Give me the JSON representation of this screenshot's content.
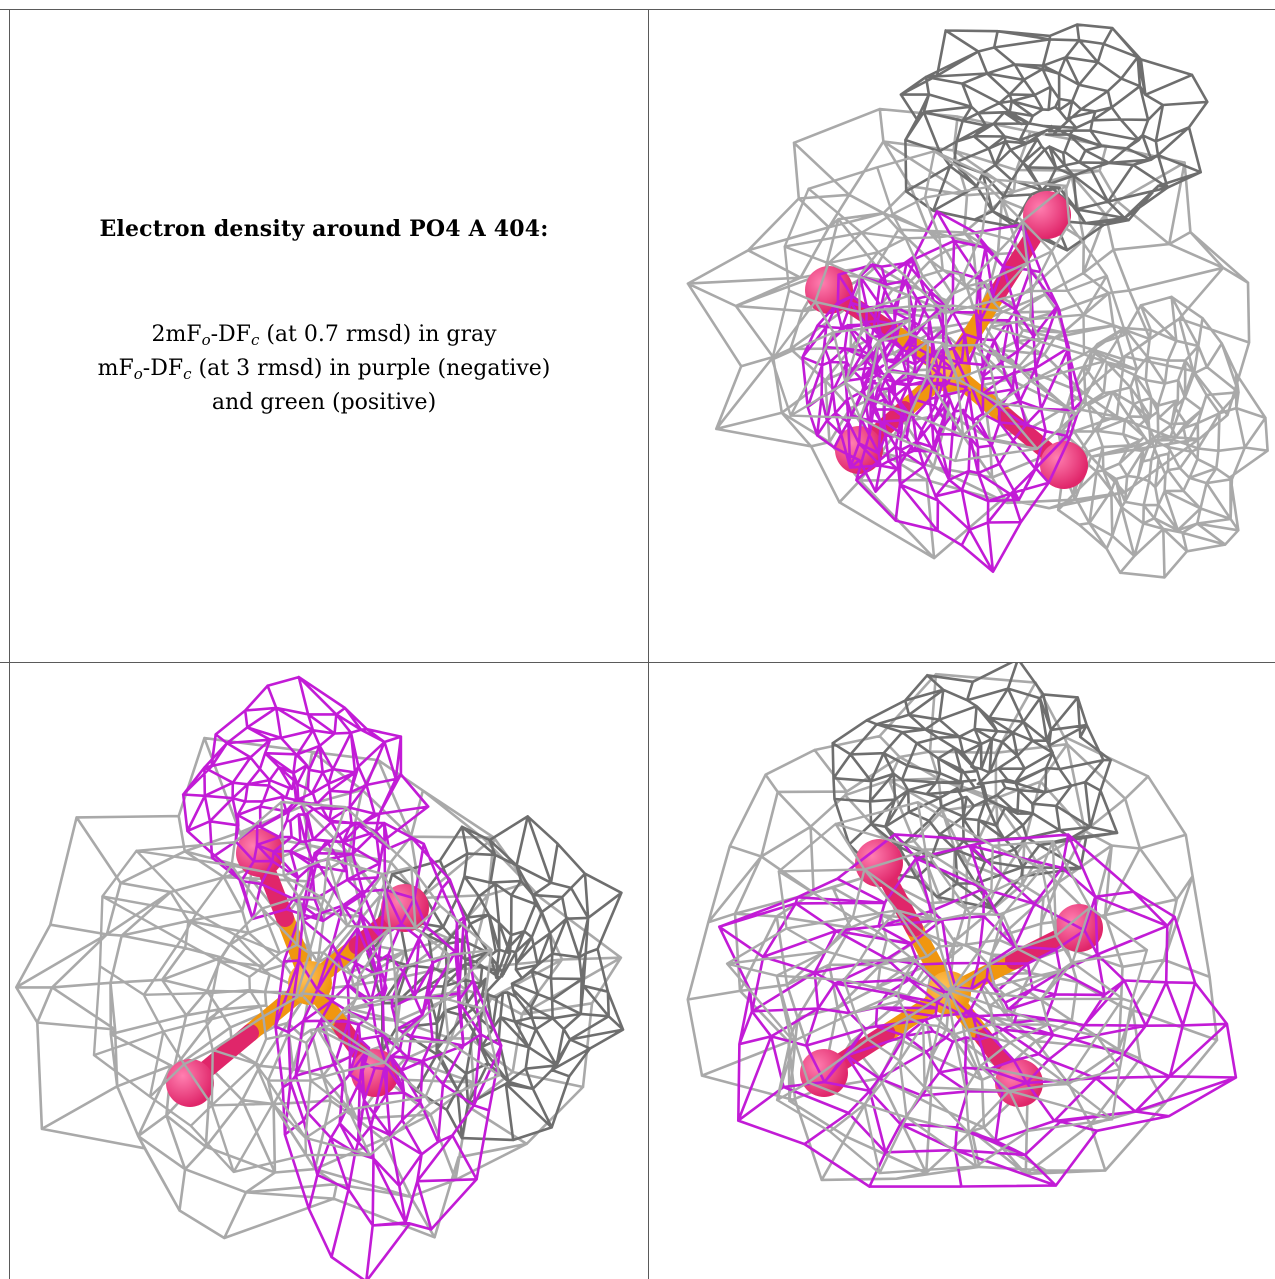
{
  "caption": {
    "title": "Electron density around PO4 A 404:",
    "line1": {
      "pre": "2mF",
      "sub1": "o",
      "mid": "-DF",
      "sub2": "c",
      "post": " (at 0.7 rmsd) in gray"
    },
    "line2": {
      "pre": "mF",
      "sub1": "o",
      "mid": "-DF",
      "sub2": "c",
      "post": " (at 3 rmsd) in purple (negative)"
    },
    "line3": "and green (positive)"
  },
  "colors": {
    "grid_line": "#5a5a5a",
    "mesh_gray": "#a9a9a9",
    "mesh_dark": "#6e6e6e",
    "mesh_purple": "#c21bd6",
    "phosphorus": "#f0960f",
    "oxygen": "#e0266a"
  },
  "panels": [
    {
      "name": "view-top-right"
    },
    {
      "name": "view-bottom-left"
    },
    {
      "name": "view-bottom-right"
    }
  ]
}
